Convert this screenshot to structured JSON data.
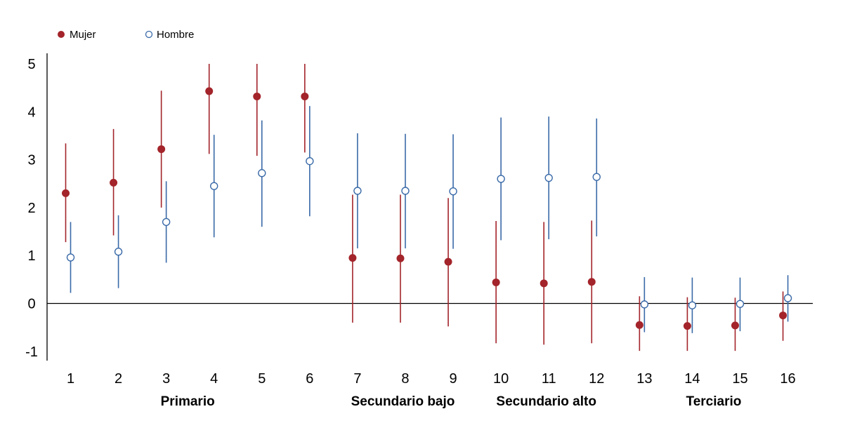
{
  "chart_data": {
    "type": "scatter",
    "categories": [
      "1",
      "2",
      "3",
      "4",
      "5",
      "6",
      "7",
      "8",
      "9",
      "10",
      "11",
      "12",
      "13",
      "14",
      "15",
      "16"
    ],
    "groups": [
      {
        "label": "Primario",
        "from": 1,
        "to": 6
      },
      {
        "label": "Secundario bajo",
        "from": 7,
        "to": 9
      },
      {
        "label": "Secundario alto",
        "from": 10,
        "to": 12
      },
      {
        "label": "Terciario",
        "from": 13,
        "to": 16
      }
    ],
    "yticks": [
      "5",
      "4",
      "3",
      "2",
      "1",
      "0",
      "-1"
    ],
    "ylim": [
      -1.2,
      5.2
    ],
    "legend_position": "top-left",
    "series": [
      {
        "name": "Mujer",
        "color": "#a3242a",
        "marker": "filled-circle",
        "values": [
          2.3,
          2.52,
          3.22,
          4.43,
          4.32,
          4.32,
          0.95,
          0.94,
          0.87,
          0.44,
          0.42,
          0.45,
          -0.45,
          -0.47,
          -0.46,
          -0.25
        ],
        "lower": [
          1.28,
          1.42,
          2.0,
          3.12,
          3.08,
          3.15,
          -0.4,
          -0.4,
          -0.48,
          -0.83,
          -0.86,
          -0.83,
          -0.99,
          -0.99,
          -0.99,
          -0.78
        ],
        "upper": [
          3.34,
          3.64,
          4.44,
          5.0,
          5.0,
          5.0,
          2.27,
          2.27,
          2.2,
          1.72,
          1.7,
          1.73,
          0.15,
          0.13,
          0.12,
          0.25
        ]
      },
      {
        "name": "Hombre",
        "color": "#3a6aa8",
        "marker": "open-circle",
        "values": [
          0.96,
          1.08,
          1.7,
          2.45,
          2.72,
          2.97,
          2.35,
          2.35,
          2.34,
          2.6,
          2.62,
          2.64,
          -0.02,
          -0.04,
          -0.01,
          0.11
        ],
        "lower": [
          0.22,
          0.32,
          0.85,
          1.38,
          1.6,
          1.82,
          1.15,
          1.15,
          1.14,
          1.32,
          1.34,
          1.4,
          -0.6,
          -0.62,
          -0.58,
          -0.38
        ],
        "upper": [
          1.7,
          1.84,
          2.55,
          3.52,
          3.82,
          4.12,
          3.55,
          3.54,
          3.53,
          3.88,
          3.9,
          3.86,
          0.55,
          0.54,
          0.54,
          0.59
        ]
      }
    ]
  }
}
